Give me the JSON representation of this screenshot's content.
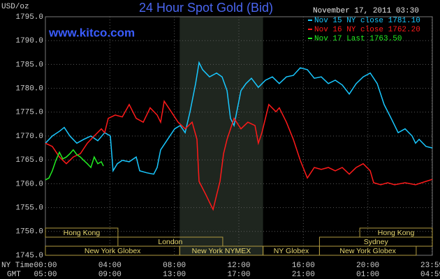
{
  "chart_data": {
    "type": "line",
    "title": "24 Hour Spot Gold (Bid)",
    "site": "www.kitco.com",
    "timestamp": "November 17, 2011 03:30",
    "y_label": "USD/oz",
    "x_label": "NY Time",
    "x2_label": "GMT",
    "xlim": [
      0,
      24
    ],
    "ylim": [
      1745,
      1795
    ],
    "grid": true,
    "yticks": [
      {
        "value": 1745,
        "label": "1745.0"
      },
      {
        "value": 1750,
        "label": "1750.0"
      },
      {
        "value": 1755,
        "label": "1755.0"
      },
      {
        "value": 1760,
        "label": "1760.0"
      },
      {
        "value": 1765,
        "label": "1765.0"
      },
      {
        "value": 1770,
        "label": "1770.0"
      },
      {
        "value": 1775,
        "label": "1775.0"
      },
      {
        "value": 1780,
        "label": "1780.0"
      },
      {
        "value": 1785,
        "label": "1785.0"
      },
      {
        "value": 1790,
        "label": "1790.0"
      },
      {
        "value": 1795,
        "label": "1795.0"
      }
    ],
    "xticks": [
      {
        "value": 0,
        "label": "00:00"
      },
      {
        "value": 4,
        "label": "04:00"
      },
      {
        "value": 8,
        "label": "08:00"
      },
      {
        "value": 12,
        "label": "12:00"
      },
      {
        "value": 16,
        "label": "16:00"
      },
      {
        "value": 20,
        "label": "20:00"
      },
      {
        "value": 23.98,
        "label": "23:59"
      }
    ],
    "x2ticks": [
      {
        "value": 0,
        "label": "05:00"
      },
      {
        "value": 4,
        "label": "09:00"
      },
      {
        "value": 8,
        "label": "13:00"
      },
      {
        "value": 12,
        "label": "17:00"
      },
      {
        "value": 16,
        "label": "21:00"
      },
      {
        "value": 20,
        "label": "01:00"
      },
      {
        "value": 23.98,
        "label": "04:59"
      }
    ],
    "highlight": {
      "start": 8.33,
      "end": 13.5,
      "color": "#1f261f"
    },
    "session_rows": [
      [
        {
          "label": "Hong Kong",
          "start": 0,
          "end": 4.5
        },
        {
          "label": "Hong Kong",
          "start": 19.5,
          "end": 24
        }
      ],
      [
        {
          "label": "London",
          "start": 4.5,
          "end": 11
        },
        {
          "label": "Sydney",
          "start": 17,
          "end": 24
        }
      ],
      [
        {
          "label": "New York Globex",
          "start": 0,
          "end": 8.33
        },
        {
          "label": "New York NYMEX",
          "start": 8.33,
          "end": 13.5
        },
        {
          "label": "NY Globex",
          "start": 13.5,
          "end": 17
        },
        {
          "label": "New York Globex",
          "start": 17,
          "end": 23
        }
      ]
    ],
    "series": [
      {
        "name": "Nov 15 NY close 1781.10",
        "color": "#19c8ff",
        "x": [
          0,
          0.43,
          0.87,
          1.17,
          1.52,
          1.95,
          2.38,
          2.82,
          3.25,
          3.68,
          4.03,
          4.2,
          4.46,
          4.77,
          5.2,
          5.63,
          5.85,
          6.28,
          6.72,
          6.93,
          7.15,
          7.58,
          8.02,
          8.36,
          8.67,
          8.97,
          9.32,
          9.53,
          9.75,
          10.18,
          10.62,
          10.96,
          11.27,
          11.48,
          11.7,
          12.13,
          12.44,
          12.78,
          13.21,
          13.65,
          14.08,
          14.51,
          14.95,
          15.38,
          15.81,
          16.25,
          16.68,
          17.11,
          17.55,
          17.98,
          18.41,
          18.85,
          19.28,
          19.71,
          20.15,
          20.58,
          21.01,
          21.45,
          21.88,
          22.31,
          22.75,
          22.96,
          23.18,
          23.61,
          24
        ],
        "values": [
          1768.5,
          1770.0,
          1771.0,
          1771.8,
          1770.0,
          1768.5,
          1769.3,
          1770.0,
          1769.0,
          1770.7,
          1770.0,
          1762.7,
          1764.2,
          1764.9,
          1764.6,
          1765.6,
          1762.7,
          1762.3,
          1762.0,
          1763.4,
          1767.1,
          1769.3,
          1771.5,
          1772.2,
          1770.7,
          1775.1,
          1781.0,
          1785.4,
          1783.9,
          1782.4,
          1783.2,
          1782.4,
          1779.5,
          1773.7,
          1772.2,
          1779.5,
          1781.0,
          1782.1,
          1780.2,
          1781.7,
          1782.4,
          1781.0,
          1782.4,
          1782.7,
          1784.3,
          1783.9,
          1782.1,
          1782.4,
          1781.0,
          1781.7,
          1780.7,
          1778.8,
          1781.0,
          1782.4,
          1783.2,
          1781.0,
          1776.6,
          1773.7,
          1770.7,
          1771.5,
          1770.0,
          1768.5,
          1769.3,
          1767.8,
          1767.5
        ]
      },
      {
        "name": "Nov 16 NY close 1762.20",
        "color": "#ff1a1a",
        "x": [
          0,
          0.43,
          0.87,
          1.3,
          1.73,
          2.17,
          2.6,
          3.03,
          3.47,
          3.68,
          3.9,
          4.33,
          4.77,
          5.2,
          5.63,
          6.07,
          6.5,
          6.93,
          7.15,
          7.37,
          7.8,
          8.23,
          8.67,
          9.1,
          9.4,
          9.53,
          9.97,
          10.18,
          10.4,
          10.62,
          10.83,
          11.05,
          11.27,
          11.7,
          12.13,
          12.56,
          13,
          13.21,
          13.43,
          13.86,
          14.3,
          14.51,
          14.95,
          15.38,
          15.81,
          16.25,
          16.68,
          17.11,
          17.55,
          17.98,
          18.41,
          18.85,
          19.28,
          19.71,
          20.15,
          20.36,
          20.8,
          21.23,
          21.66,
          22.31,
          22.96,
          23.61,
          24
        ],
        "values": [
          1768.5,
          1767.8,
          1765.6,
          1764.2,
          1765.6,
          1766.3,
          1768.5,
          1770.0,
          1771.5,
          1770.7,
          1773.7,
          1774.4,
          1774.0,
          1776.6,
          1773.7,
          1772.9,
          1775.9,
          1774.4,
          1772.9,
          1777.3,
          1775.1,
          1772.9,
          1771.5,
          1772.9,
          1769.3,
          1760.5,
          1757.6,
          1756.1,
          1754.6,
          1757.6,
          1760.5,
          1766.3,
          1769.3,
          1773.7,
          1771.5,
          1772.9,
          1772.2,
          1768.5,
          1770.7,
          1776.6,
          1775.1,
          1775.9,
          1772.9,
          1769.3,
          1764.9,
          1761.2,
          1763.4,
          1763.0,
          1763.4,
          1762.7,
          1763.4,
          1762.0,
          1763.4,
          1764.2,
          1762.7,
          1760.2,
          1759.8,
          1760.2,
          1759.8,
          1760.2,
          1759.8,
          1760.5,
          1760.9
        ]
      },
      {
        "name": "Nov 17 Last 1763.50",
        "color": "#22ee22",
        "x": [
          0,
          0.22,
          0.43,
          0.65,
          0.87,
          1.08,
          1.3,
          1.52,
          1.73,
          1.95,
          2.17,
          2.38,
          2.6,
          2.82,
          3.03,
          3.25,
          3.47,
          3.6
        ],
        "values": [
          1760.8,
          1761.2,
          1762.7,
          1764.9,
          1766.6,
          1765.2,
          1765.6,
          1766.3,
          1767.1,
          1766.1,
          1765.6,
          1764.9,
          1764.2,
          1763.4,
          1765.6,
          1764.2,
          1764.6,
          1763.7
        ]
      }
    ]
  }
}
